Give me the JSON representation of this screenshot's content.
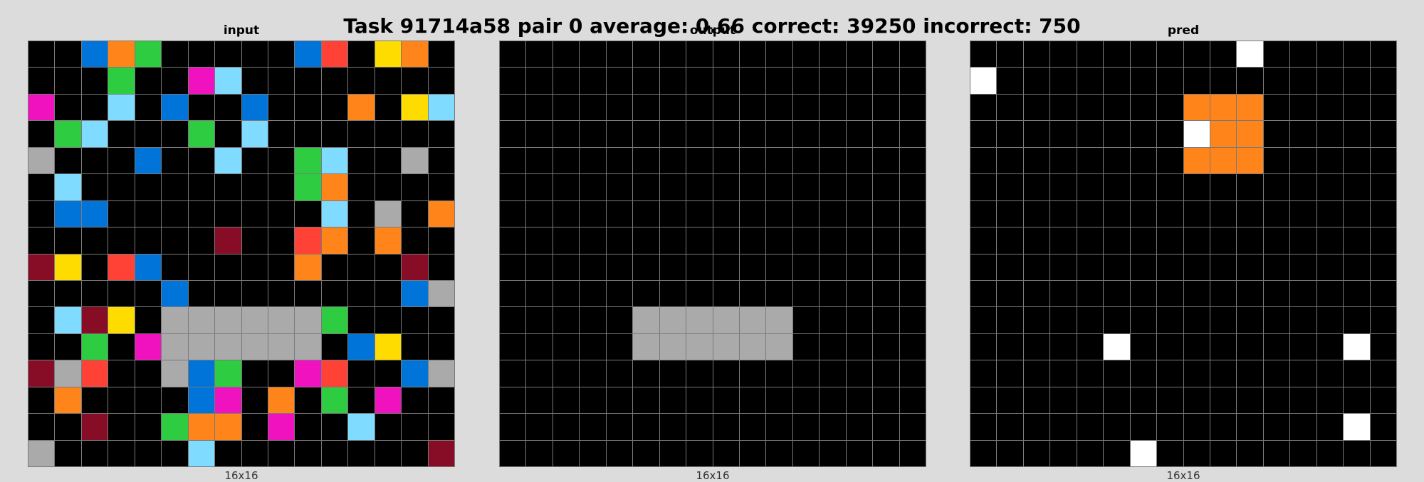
{
  "title": "Task 91714a58 pair 0 average: 0.66 correct: 39250 incorrect: 750",
  "palette": {
    "0": "#000000",
    "1": "#0074D9",
    "2": "#FF4136",
    "3": "#2ECC40",
    "4": "#FFDC00",
    "5": "#AAAAAA",
    "6": "#F012BE",
    "7": "#FF851B",
    "8": "#7FDBFF",
    "9": "#870C25",
    "w": "#FFFFFF"
  },
  "panels": [
    {
      "key": "input",
      "title": "input",
      "dims": "16x16",
      "grid": [
        [
          "0",
          "0",
          "1",
          "7",
          "3",
          "0",
          "0",
          "0",
          "0",
          "0",
          "1",
          "2",
          "0",
          "4",
          "7",
          "0"
        ],
        [
          "0",
          "0",
          "0",
          "3",
          "0",
          "0",
          "6",
          "8",
          "0",
          "0",
          "0",
          "0",
          "0",
          "0",
          "0",
          "0"
        ],
        [
          "6",
          "0",
          "0",
          "8",
          "0",
          "1",
          "0",
          "0",
          "1",
          "0",
          "0",
          "0",
          "7",
          "0",
          "4",
          "8"
        ],
        [
          "0",
          "3",
          "8",
          "0",
          "0",
          "0",
          "3",
          "0",
          "8",
          "0",
          "0",
          "0",
          "0",
          "0",
          "0",
          "0"
        ],
        [
          "5",
          "0",
          "0",
          "0",
          "1",
          "0",
          "0",
          "8",
          "0",
          "0",
          "3",
          "8",
          "0",
          "0",
          "5",
          "0"
        ],
        [
          "0",
          "8",
          "0",
          "0",
          "0",
          "0",
          "0",
          "0",
          "0",
          "0",
          "3",
          "7",
          "0",
          "0",
          "0",
          "0"
        ],
        [
          "0",
          "1",
          "1",
          "0",
          "0",
          "0",
          "0",
          "0",
          "0",
          "0",
          "0",
          "8",
          "0",
          "5",
          "0",
          "7"
        ],
        [
          "0",
          "0",
          "0",
          "0",
          "0",
          "0",
          "0",
          "9",
          "0",
          "0",
          "2",
          "7",
          "0",
          "7",
          "0",
          "0"
        ],
        [
          "9",
          "4",
          "0",
          "2",
          "1",
          "0",
          "0",
          "0",
          "0",
          "0",
          "7",
          "0",
          "0",
          "0",
          "9",
          "0"
        ],
        [
          "0",
          "0",
          "0",
          "0",
          "0",
          "1",
          "0",
          "0",
          "0",
          "0",
          "0",
          "0",
          "0",
          "0",
          "1",
          "5"
        ],
        [
          "0",
          "8",
          "9",
          "4",
          "0",
          "5",
          "5",
          "5",
          "5",
          "5",
          "5",
          "3",
          "0",
          "0",
          "0",
          "0"
        ],
        [
          "0",
          "0",
          "3",
          "0",
          "6",
          "5",
          "5",
          "5",
          "5",
          "5",
          "5",
          "0",
          "1",
          "4",
          "0",
          "0"
        ],
        [
          "9",
          "5",
          "2",
          "0",
          "0",
          "5",
          "1",
          "3",
          "0",
          "0",
          "6",
          "2",
          "0",
          "0",
          "1",
          "5"
        ],
        [
          "0",
          "7",
          "0",
          "0",
          "0",
          "0",
          "1",
          "6",
          "0",
          "7",
          "0",
          "3",
          "0",
          "6",
          "0",
          "0"
        ],
        [
          "0",
          "0",
          "9",
          "0",
          "0",
          "3",
          "7",
          "7",
          "0",
          "6",
          "0",
          "0",
          "8",
          "0",
          "0",
          "0"
        ],
        [
          "5",
          "0",
          "0",
          "0",
          "0",
          "0",
          "8",
          "0",
          "0",
          "0",
          "0",
          "0",
          "0",
          "0",
          "0",
          "9"
        ]
      ]
    },
    {
      "key": "output",
      "title": "output",
      "dims": "16x16",
      "grid": [
        [
          "0",
          "0",
          "0",
          "0",
          "0",
          "0",
          "0",
          "0",
          "0",
          "0",
          "0",
          "0",
          "0",
          "0",
          "0",
          "0"
        ],
        [
          "0",
          "0",
          "0",
          "0",
          "0",
          "0",
          "0",
          "0",
          "0",
          "0",
          "0",
          "0",
          "0",
          "0",
          "0",
          "0"
        ],
        [
          "0",
          "0",
          "0",
          "0",
          "0",
          "0",
          "0",
          "0",
          "0",
          "0",
          "0",
          "0",
          "0",
          "0",
          "0",
          "0"
        ],
        [
          "0",
          "0",
          "0",
          "0",
          "0",
          "0",
          "0",
          "0",
          "0",
          "0",
          "0",
          "0",
          "0",
          "0",
          "0",
          "0"
        ],
        [
          "0",
          "0",
          "0",
          "0",
          "0",
          "0",
          "0",
          "0",
          "0",
          "0",
          "0",
          "0",
          "0",
          "0",
          "0",
          "0"
        ],
        [
          "0",
          "0",
          "0",
          "0",
          "0",
          "0",
          "0",
          "0",
          "0",
          "0",
          "0",
          "0",
          "0",
          "0",
          "0",
          "0"
        ],
        [
          "0",
          "0",
          "0",
          "0",
          "0",
          "0",
          "0",
          "0",
          "0",
          "0",
          "0",
          "0",
          "0",
          "0",
          "0",
          "0"
        ],
        [
          "0",
          "0",
          "0",
          "0",
          "0",
          "0",
          "0",
          "0",
          "0",
          "0",
          "0",
          "0",
          "0",
          "0",
          "0",
          "0"
        ],
        [
          "0",
          "0",
          "0",
          "0",
          "0",
          "0",
          "0",
          "0",
          "0",
          "0",
          "0",
          "0",
          "0",
          "0",
          "0",
          "0"
        ],
        [
          "0",
          "0",
          "0",
          "0",
          "0",
          "0",
          "0",
          "0",
          "0",
          "0",
          "0",
          "0",
          "0",
          "0",
          "0",
          "0"
        ],
        [
          "0",
          "0",
          "0",
          "0",
          "0",
          "5",
          "5",
          "5",
          "5",
          "5",
          "5",
          "0",
          "0",
          "0",
          "0",
          "0"
        ],
        [
          "0",
          "0",
          "0",
          "0",
          "0",
          "5",
          "5",
          "5",
          "5",
          "5",
          "5",
          "0",
          "0",
          "0",
          "0",
          "0"
        ],
        [
          "0",
          "0",
          "0",
          "0",
          "0",
          "0",
          "0",
          "0",
          "0",
          "0",
          "0",
          "0",
          "0",
          "0",
          "0",
          "0"
        ],
        [
          "0",
          "0",
          "0",
          "0",
          "0",
          "0",
          "0",
          "0",
          "0",
          "0",
          "0",
          "0",
          "0",
          "0",
          "0",
          "0"
        ],
        [
          "0",
          "0",
          "0",
          "0",
          "0",
          "0",
          "0",
          "0",
          "0",
          "0",
          "0",
          "0",
          "0",
          "0",
          "0",
          "0"
        ],
        [
          "0",
          "0",
          "0",
          "0",
          "0",
          "0",
          "0",
          "0",
          "0",
          "0",
          "0",
          "0",
          "0",
          "0",
          "0",
          "0"
        ]
      ]
    },
    {
      "key": "pred",
      "title": "pred",
      "dims": "16x16",
      "grid": [
        [
          "0",
          "0",
          "0",
          "0",
          "0",
          "0",
          "0",
          "0",
          "0",
          "0",
          "w",
          "0",
          "0",
          "0",
          "0",
          "0"
        ],
        [
          "w",
          "0",
          "0",
          "0",
          "0",
          "0",
          "0",
          "0",
          "0",
          "0",
          "0",
          "0",
          "0",
          "0",
          "0",
          "0"
        ],
        [
          "0",
          "0",
          "0",
          "0",
          "0",
          "0",
          "0",
          "0",
          "7",
          "7",
          "7",
          "0",
          "0",
          "0",
          "0",
          "0"
        ],
        [
          "0",
          "0",
          "0",
          "0",
          "0",
          "0",
          "0",
          "0",
          "w",
          "7",
          "7",
          "0",
          "0",
          "0",
          "0",
          "0"
        ],
        [
          "0",
          "0",
          "0",
          "0",
          "0",
          "0",
          "0",
          "0",
          "7",
          "7",
          "7",
          "0",
          "0",
          "0",
          "0",
          "0"
        ],
        [
          "0",
          "0",
          "0",
          "0",
          "0",
          "0",
          "0",
          "0",
          "0",
          "0",
          "0",
          "0",
          "0",
          "0",
          "0",
          "0"
        ],
        [
          "0",
          "0",
          "0",
          "0",
          "0",
          "0",
          "0",
          "0",
          "0",
          "0",
          "0",
          "0",
          "0",
          "0",
          "0",
          "0"
        ],
        [
          "0",
          "0",
          "0",
          "0",
          "0",
          "0",
          "0",
          "0",
          "0",
          "0",
          "0",
          "0",
          "0",
          "0",
          "0",
          "0"
        ],
        [
          "0",
          "0",
          "0",
          "0",
          "0",
          "0",
          "0",
          "0",
          "0",
          "0",
          "0",
          "0",
          "0",
          "0",
          "0",
          "0"
        ],
        [
          "0",
          "0",
          "0",
          "0",
          "0",
          "0",
          "0",
          "0",
          "0",
          "0",
          "0",
          "0",
          "0",
          "0",
          "0",
          "0"
        ],
        [
          "0",
          "0",
          "0",
          "0",
          "0",
          "0",
          "0",
          "0",
          "0",
          "0",
          "0",
          "0",
          "0",
          "0",
          "0",
          "0"
        ],
        [
          "0",
          "0",
          "0",
          "0",
          "0",
          "w",
          "0",
          "0",
          "0",
          "0",
          "0",
          "0",
          "0",
          "0",
          "w",
          "0"
        ],
        [
          "0",
          "0",
          "0",
          "0",
          "0",
          "0",
          "0",
          "0",
          "0",
          "0",
          "0",
          "0",
          "0",
          "0",
          "0",
          "0"
        ],
        [
          "0",
          "0",
          "0",
          "0",
          "0",
          "0",
          "0",
          "0",
          "0",
          "0",
          "0",
          "0",
          "0",
          "0",
          "0",
          "0"
        ],
        [
          "0",
          "0",
          "0",
          "0",
          "0",
          "0",
          "0",
          "0",
          "0",
          "0",
          "0",
          "0",
          "0",
          "0",
          "w",
          "0"
        ],
        [
          "0",
          "0",
          "0",
          "0",
          "0",
          "0",
          "w",
          "0",
          "0",
          "0",
          "0",
          "0",
          "0",
          "0",
          "0",
          "0"
        ]
      ]
    }
  ]
}
